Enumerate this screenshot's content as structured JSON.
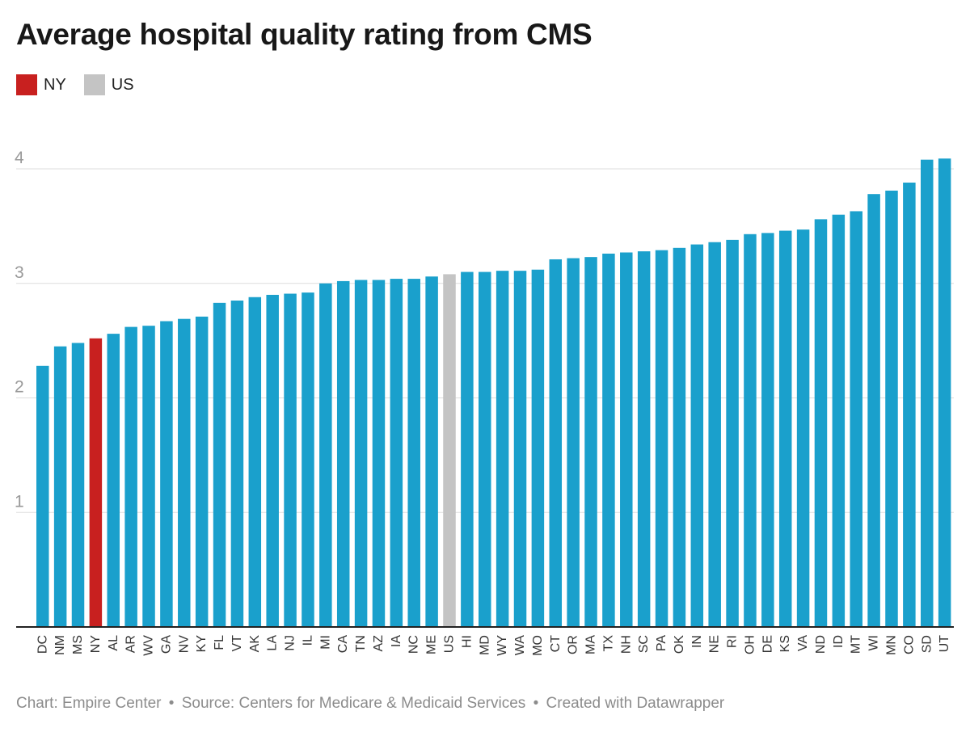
{
  "title": "Average hospital quality rating from CMS",
  "legend": [
    {
      "label": "NY",
      "color": "#c8201f"
    },
    {
      "label": "US",
      "color": "#c4c4c4"
    }
  ],
  "colors": {
    "default_bar": "#1aa0cc",
    "highlight_ny": "#c8201f",
    "highlight_us": "#c4c4c4",
    "grid": "#dddddd",
    "baseline": "#222222",
    "tick_text": "#999999"
  },
  "footer": {
    "chart_credit": "Chart: Empire Center",
    "source": "Source: Centers for Medicare & Medicaid Services",
    "created": "Created with Datawrapper",
    "separator": "•"
  },
  "chart_data": {
    "type": "bar",
    "title": "Average hospital quality rating from CMS",
    "xlabel": "",
    "ylabel": "",
    "ylim": [
      0,
      4
    ],
    "yticks": [
      1,
      2,
      3,
      4
    ],
    "grid": true,
    "legend_position": "top-left",
    "categories": [
      "DC",
      "NM",
      "MS",
      "NY",
      "AL",
      "AR",
      "WV",
      "GA",
      "NV",
      "KY",
      "FL",
      "VT",
      "AK",
      "LA",
      "NJ",
      "IL",
      "MI",
      "CA",
      "TN",
      "AZ",
      "IA",
      "NC",
      "ME",
      "US",
      "HI",
      "MD",
      "WY",
      "WA",
      "MO",
      "CT",
      "OR",
      "MA",
      "TX",
      "NH",
      "SC",
      "PA",
      "OK",
      "IN",
      "NE",
      "RI",
      "OH",
      "DE",
      "KS",
      "VA",
      "ND",
      "ID",
      "MT",
      "WI",
      "MN",
      "CO",
      "SD",
      "UT"
    ],
    "values": [
      2.28,
      2.45,
      2.48,
      2.52,
      2.56,
      2.62,
      2.63,
      2.67,
      2.69,
      2.71,
      2.83,
      2.85,
      2.88,
      2.9,
      2.91,
      2.92,
      3.0,
      3.02,
      3.03,
      3.03,
      3.04,
      3.04,
      3.06,
      3.08,
      3.1,
      3.1,
      3.11,
      3.11,
      3.12,
      3.21,
      3.22,
      3.23,
      3.26,
      3.27,
      3.28,
      3.29,
      3.31,
      3.34,
      3.36,
      3.38,
      3.43,
      3.44,
      3.46,
      3.47,
      3.56,
      3.6,
      3.63,
      3.78,
      3.81,
      3.88,
      4.08,
      4.09
    ],
    "highlights": {
      "NY": "#c8201f",
      "US": "#c4c4c4"
    }
  }
}
